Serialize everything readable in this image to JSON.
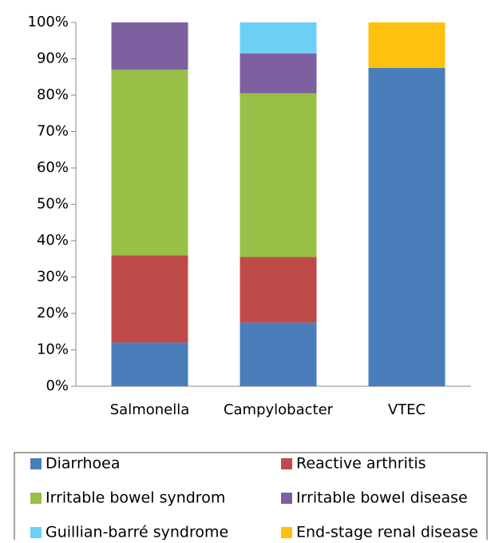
{
  "chart_data": {
    "type": "stacked_bar",
    "categories": [
      "Salmonella",
      "Campylobacter",
      "VTEC"
    ],
    "series": [
      {
        "name": "Diarrhoea",
        "color": "#4a7ebb",
        "values": [
          12,
          17.5,
          87.5
        ]
      },
      {
        "name": "Reactive arthritis",
        "color": "#be4b48",
        "values": [
          24,
          18,
          0
        ]
      },
      {
        "name": "Irritable bowel syndrom",
        "color": "#98c046",
        "values": [
          51,
          45,
          0
        ]
      },
      {
        "name": "Irritable bowel disease",
        "color": "#7d60a0",
        "values": [
          13,
          11,
          0
        ]
      },
      {
        "name": "Guillian-barré syndrome",
        "color": "#6ccff6",
        "values": [
          0,
          8.5,
          0
        ]
      },
      {
        "name": "End-stage renal disease",
        "color": "#fec10e",
        "values": [
          0,
          0,
          12.5
        ]
      }
    ],
    "ylim": [
      0,
      100
    ],
    "yticks": [
      {
        "value": 0,
        "label": "0%"
      },
      {
        "value": 10,
        "label": "10%"
      },
      {
        "value": 20,
        "label": "20%"
      },
      {
        "value": 30,
        "label": "30%"
      },
      {
        "value": 40,
        "label": "40%"
      },
      {
        "value": 50,
        "label": "50%"
      },
      {
        "value": 60,
        "label": "60%"
      },
      {
        "value": 70,
        "label": "70%"
      },
      {
        "value": 80,
        "label": "80%"
      },
      {
        "value": 90,
        "label": "90%"
      },
      {
        "value": 100,
        "label": "100%"
      }
    ],
    "grid": false
  }
}
